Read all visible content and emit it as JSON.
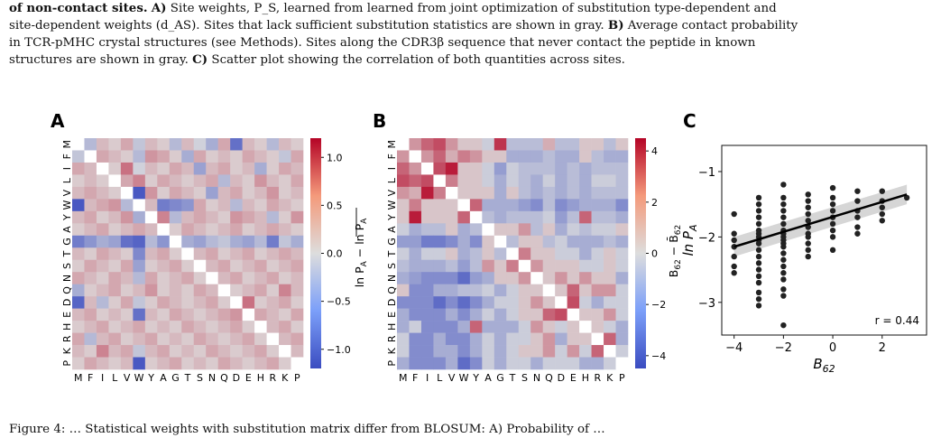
{
  "caption_top": {
    "line1_bold": "of non-contact sites.",
    "line1_A": "A)",
    "line1_rest": " Site weights, P_S, learned from learned from joint optimization of substitution type-dependent and",
    "line2": "site-dependent weights (d_AS). Sites that lack sufficient substitution statistics are shown in gray.",
    "line2_B": "B)",
    "line2_rest": " Average contact probability",
    "line3": "in TCR-pMHC crystal structures (see Methods). Sites along the CDR3β sequence that never contact the peptide in known",
    "line4": "structures are shown in gray.",
    "line4_C": "C)",
    "line4_rest": " Scatter plot showing the correlation of both quantities across sites."
  },
  "caption_bottom": "Figure 4: … Statistical weights with substitution matrix differ from BLOSUM: A) Probability of …",
  "panels": {
    "A": {
      "label": "A"
    },
    "B": {
      "label": "B"
    },
    "C": {
      "label": "C"
    }
  },
  "amino_acids": [
    "M",
    "F",
    "I",
    "L",
    "V",
    "W",
    "Y",
    "A",
    "G",
    "T",
    "S",
    "N",
    "Q",
    "D",
    "E",
    "H",
    "R",
    "K",
    "P"
  ],
  "colorbar_A": {
    "ticks": [
      "1.0",
      "0.5",
      "0.0",
      "−0.5",
      "−1.0"
    ],
    "label": "ln P_A − ln P_A (mean)"
  },
  "colorbar_B": {
    "ticks": [
      "4",
      "2",
      "0",
      "−2",
      "−4"
    ],
    "label": "B_62 − B̄_62"
  },
  "colors": {
    "cold": "#3b4cc0",
    "warm": "#b40426",
    "neutral": "#dddddd",
    "diag": "#ffffff"
  },
  "chart_data": [
    {
      "type": "heatmap",
      "panel": "A",
      "rows": [
        "M",
        "F",
        "I",
        "L",
        "V",
        "W",
        "Y",
        "A",
        "G",
        "T",
        "S",
        "N",
        "Q",
        "D",
        "E",
        "H",
        "R",
        "K",
        "P"
      ],
      "cols": [
        "M",
        "F",
        "I",
        "L",
        "V",
        "W",
        "Y",
        "A",
        "G",
        "T",
        "S",
        "N",
        "Q",
        "D",
        "E",
        "H",
        "R",
        "K",
        "P"
      ],
      "colorbar_range": [
        -1.2,
        1.2
      ],
      "ylabel": "ln P_A − ln P_A",
      "values": [
        [
          0,
          -0.3,
          0.2,
          0.1,
          0.3,
          -0.2,
          0.2,
          0.1,
          -0.3,
          0.2,
          -0.1,
          -0.4,
          0.3,
          -0.9,
          0.2,
          0.1,
          -0.3,
          0.2,
          0.1
        ],
        [
          -0.2,
          0,
          0.3,
          0.2,
          0.1,
          -0.3,
          0.4,
          0.3,
          0.1,
          -0.4,
          0.3,
          0.1,
          0.2,
          0.1,
          0.3,
          0.2,
          0.1,
          -0.2,
          0.3
        ],
        [
          0.3,
          0.2,
          0,
          0.1,
          0.6,
          -0.1,
          0.2,
          0.1,
          0.3,
          0.2,
          -0.5,
          0.2,
          0.3,
          0.1,
          0.2,
          -0.4,
          0.1,
          0.3,
          0.2
        ],
        [
          0.1,
          0.2,
          0.1,
          0,
          0.3,
          0.5,
          0.1,
          0.3,
          0.2,
          0.1,
          0.2,
          0.3,
          -0.3,
          0.2,
          0.1,
          0.4,
          0.2,
          0.1,
          0.3
        ],
        [
          0.2,
          0.3,
          0.2,
          0.1,
          0,
          -1.1,
          0.4,
          0.1,
          0.3,
          0.2,
          0.1,
          -0.5,
          0.2,
          0.3,
          0.1,
          0.2,
          0.4,
          0.1,
          0.2
        ],
        [
          -1.1,
          0.2,
          0.3,
          0.4,
          -0.3,
          0,
          0.2,
          -0.8,
          -0.7,
          -0.6,
          0.3,
          0.1,
          0.2,
          -0.3,
          0.2,
          0.1,
          0.3,
          0.2,
          0.1
        ],
        [
          0.2,
          0.3,
          0.1,
          0.2,
          0.4,
          -0.4,
          0,
          0.5,
          -0.3,
          0.2,
          0.3,
          0.2,
          0.1,
          0.4,
          0.3,
          0.2,
          -0.3,
          0.1,
          0.4
        ],
        [
          0.1,
          0.2,
          0.3,
          0.1,
          0.2,
          0.3,
          0.2,
          0,
          0.1,
          0.3,
          0.2,
          0.1,
          0.2,
          0.3,
          0.1,
          0.2,
          0.3,
          0.2,
          0.1
        ],
        [
          -0.8,
          -0.6,
          -0.4,
          -0.5,
          -0.9,
          -1.0,
          -0.3,
          -0.6,
          0,
          -0.4,
          -0.5,
          -0.3,
          -0.2,
          -0.4,
          -0.5,
          -0.3,
          -0.8,
          -0.2,
          -0.4
        ],
        [
          0.2,
          0.1,
          0.3,
          0.2,
          0.1,
          -0.7,
          0.2,
          0.3,
          0.1,
          0,
          0.2,
          0.3,
          0.1,
          0.2,
          0.3,
          0.1,
          0.2,
          0.3,
          0.2
        ],
        [
          0.1,
          0.3,
          0.2,
          0.1,
          0.3,
          -0.5,
          0.1,
          0.2,
          0.3,
          0.1,
          0,
          0.2,
          0.3,
          0.1,
          0.2,
          0.3,
          0.1,
          0.2,
          0.3
        ],
        [
          0.3,
          0.2,
          0.1,
          0.3,
          0.2,
          -0.3,
          0.3,
          0.1,
          0.2,
          0.3,
          0.1,
          0,
          0.2,
          0.3,
          0.1,
          0.2,
          0.3,
          0.1,
          0.2
        ],
        [
          -0.4,
          0.1,
          0.2,
          0.3,
          0.1,
          0.2,
          0.4,
          0.1,
          0.2,
          0.1,
          0.3,
          0.2,
          0,
          0.1,
          0.2,
          0.3,
          0.1,
          0.5,
          0.2
        ],
        [
          -1.0,
          0.2,
          -0.3,
          0.1,
          0.3,
          -0.2,
          0.1,
          0.3,
          0.2,
          0.1,
          0.2,
          0.3,
          0.1,
          0,
          0.6,
          0.1,
          0.2,
          0.3,
          0.1
        ],
        [
          0.2,
          0.3,
          0.1,
          0.2,
          0.1,
          -0.9,
          0.2,
          0.1,
          0.3,
          0.2,
          0.1,
          0.2,
          0.3,
          0.4,
          0,
          0.3,
          0.2,
          0.1,
          0.3
        ],
        [
          0.1,
          0.2,
          0.3,
          0.1,
          0.2,
          0.3,
          0.1,
          0.2,
          0.1,
          0.3,
          0.2,
          0.1,
          0.2,
          0.3,
          0.1,
          0,
          0.2,
          0.3,
          0.1
        ],
        [
          0.3,
          -0.3,
          0.2,
          0.3,
          0.1,
          0.2,
          0.3,
          0.1,
          0.2,
          0.1,
          0.3,
          0.2,
          0.1,
          0.2,
          0.3,
          0.1,
          0,
          0.2,
          0.3
        ],
        [
          0.2,
          0.1,
          0.5,
          0.2,
          0.3,
          -0.2,
          0.2,
          0.3,
          0.1,
          0.2,
          0.1,
          0.3,
          0.2,
          0.1,
          0.2,
          0.3,
          0.1,
          0,
          0.2
        ],
        [
          0.1,
          0.3,
          0.2,
          0.1,
          0.2,
          -1.1,
          0.1,
          0.2,
          0.3,
          0.1,
          0.2,
          0.1,
          0.3,
          0.2,
          0.1,
          0.2,
          0.3,
          0.1,
          0
        ]
      ]
    },
    {
      "type": "heatmap",
      "panel": "B",
      "rows": [
        "M",
        "F",
        "I",
        "L",
        "V",
        "W",
        "Y",
        "A",
        "G",
        "T",
        "S",
        "N",
        "Q",
        "D",
        "E",
        "H",
        "R",
        "K",
        "P"
      ],
      "cols": [
        "M",
        "F",
        "I",
        "L",
        "V",
        "W",
        "Y",
        "A",
        "G",
        "T",
        "S",
        "N",
        "Q",
        "D",
        "E",
        "H",
        "R",
        "K",
        "P"
      ],
      "colorbar_range": [
        -4.5,
        4.5
      ],
      "ylabel": "B_62 − B̄_62",
      "values": [
        [
          0,
          1.5,
          2.5,
          3,
          1.5,
          0.5,
          0.5,
          -0.5,
          3.5,
          -1,
          -1,
          -1,
          1,
          -1,
          -1,
          0.5,
          0.5,
          -1,
          0.5
        ],
        [
          1.5,
          0,
          1.5,
          2.5,
          1,
          2,
          1.5,
          0.5,
          0.5,
          -1.5,
          -1.5,
          -1.5,
          -1,
          -1.5,
          -1.5,
          0.5,
          -1,
          -1.5,
          -1.5
        ],
        [
          2.5,
          1.5,
          0,
          3,
          4,
          0.5,
          0.5,
          -0.5,
          -2,
          -0.5,
          -1,
          -1,
          -1,
          -1.5,
          -1,
          -1.5,
          -1,
          -1,
          -1
        ],
        [
          3,
          2.5,
          3,
          0,
          2,
          0.5,
          0.5,
          -0.5,
          -1.5,
          -0.5,
          -1,
          -1.5,
          -0.5,
          -1.5,
          -1,
          -1.5,
          -0.5,
          -0.5,
          -1
        ],
        [
          1.5,
          1,
          4,
          2,
          0,
          0.5,
          0.5,
          0.5,
          -1.5,
          0.5,
          -1,
          -1.5,
          -1,
          -1.5,
          -1,
          -1.5,
          -1,
          -1,
          -1
        ],
        [
          0.5,
          2,
          0.5,
          0.5,
          0.5,
          0,
          2.5,
          -1.5,
          -1.5,
          -1.5,
          -2,
          -2.5,
          -1,
          -2.5,
          -2,
          -1.5,
          -1.5,
          -1.5,
          -2.5
        ],
        [
          0.5,
          4,
          0.5,
          0.5,
          0.5,
          2.5,
          0,
          -1,
          -1.5,
          -1,
          -1,
          -1,
          -0.5,
          -2,
          -1,
          2.5,
          -1,
          -1,
          -1.5
        ],
        [
          -0.5,
          -1.5,
          -1,
          -1,
          0.5,
          -1.5,
          -1,
          0,
          0.5,
          0.5,
          1.5,
          -1,
          0.5,
          -1.5,
          -0.5,
          -1,
          -0.5,
          -0.5,
          0.5
        ],
        [
          -2,
          -2,
          -3,
          -3,
          -2.5,
          -1.5,
          -2.5,
          0.5,
          0,
          -1,
          0.5,
          0.5,
          -1,
          -0.5,
          -1.5,
          -1.5,
          -1.5,
          -1,
          -1.5
        ],
        [
          -0.5,
          -1.5,
          -0.5,
          -0.5,
          0.5,
          -1.5,
          -1,
          0.5,
          -1,
          0,
          2,
          0.5,
          0.5,
          -0.5,
          -0.5,
          -1.5,
          -0.5,
          0.5,
          -0.5
        ],
        [
          -1,
          -1.5,
          -1.5,
          -1.5,
          -1,
          -2,
          -1,
          1.5,
          0.5,
          2,
          0,
          1.5,
          0.5,
          0.5,
          0.5,
          -0.5,
          -0.5,
          0.5,
          -0.5
        ],
        [
          -1.5,
          -2,
          -2.5,
          -2.5,
          -2.5,
          -3.5,
          -2,
          -1.5,
          0.5,
          0.5,
          1.5,
          0,
          0.5,
          1.5,
          0.5,
          1.5,
          0.5,
          0.5,
          -1.5
        ],
        [
          0.5,
          -2.5,
          -2.5,
          -1.5,
          -1.5,
          -1,
          -1,
          -0.5,
          -1.5,
          -0.5,
          0.5,
          0.5,
          0,
          0.5,
          2.5,
          0.5,
          1.5,
          1.5,
          -0.5
        ],
        [
          -2.5,
          -2.5,
          -2.5,
          -3.5,
          -2.5,
          -3.5,
          -2.5,
          -1.5,
          -0.5,
          -0.5,
          0.5,
          1.5,
          0.5,
          0,
          3,
          -0.5,
          -1.5,
          -0.5,
          -0.5
        ],
        [
          -1.5,
          -2.5,
          -2.5,
          -2.5,
          -1.5,
          -2.5,
          -1.5,
          -0.5,
          -1.5,
          -0.5,
          0.5,
          0.5,
          2.5,
          3,
          0,
          0.5,
          0.5,
          1.5,
          -0.5
        ],
        [
          -1.5,
          -0.5,
          -2.5,
          -2.5,
          -2.5,
          -1.5,
          2.5,
          -1.5,
          -1.5,
          -1.5,
          -0.5,
          1.5,
          0.5,
          -0.5,
          0.5,
          0,
          0.5,
          -0.5,
          -1.5
        ],
        [
          -0.5,
          -2.5,
          -2.5,
          -1.5,
          -2.5,
          -2.5,
          -1.5,
          -0.5,
          -1.5,
          -0.5,
          -0.5,
          0.5,
          1.5,
          -1.5,
          0.5,
          0.5,
          0,
          2.5,
          -1.5
        ],
        [
          -0.5,
          -2.5,
          -2.5,
          -1.5,
          -1.5,
          -2.5,
          -1.5,
          -0.5,
          -1.5,
          -0.5,
          0.5,
          0.5,
          1.5,
          -0.5,
          1.5,
          -0.5,
          2.5,
          0,
          -0.5
        ],
        [
          -1.5,
          -2.5,
          -2.5,
          -2.5,
          -1.5,
          -3.5,
          -2.5,
          -0.5,
          -1.5,
          -0.5,
          -0.5,
          -1.5,
          -0.5,
          -0.5,
          -0.5,
          -1.5,
          -1.5,
          -0.5,
          0
        ]
      ]
    },
    {
      "type": "scatter",
      "panel": "C",
      "xlabel": "B_62",
      "ylabel": "ln P_A",
      "xlim": [
        -4.5,
        3.8
      ],
      "ylim": [
        -3.5,
        -0.6
      ],
      "xticks": [
        -4,
        -2,
        0,
        2
      ],
      "yticks": [
        -1,
        -2,
        -3
      ],
      "annotation": "r = 0.44",
      "fit": {
        "x": [
          -4,
          3
        ],
        "y": [
          -2.15,
          -1.35
        ]
      },
      "points": [
        [
          -4,
          -1.65
        ],
        [
          -4,
          -1.95
        ],
        [
          -4,
          -2.05
        ],
        [
          -4,
          -2.15
        ],
        [
          -4,
          -2.3
        ],
        [
          -4,
          -2.45
        ],
        [
          -4,
          -2.55
        ],
        [
          -3,
          -1.4
        ],
        [
          -3,
          -1.5
        ],
        [
          -3,
          -1.6
        ],
        [
          -3,
          -1.7
        ],
        [
          -3,
          -1.8
        ],
        [
          -3,
          -1.9
        ],
        [
          -3,
          -1.95
        ],
        [
          -3,
          -2.0
        ],
        [
          -3,
          -2.05
        ],
        [
          -3,
          -2.1
        ],
        [
          -3,
          -2.2
        ],
        [
          -3,
          -2.3
        ],
        [
          -3,
          -2.4
        ],
        [
          -3,
          -2.5
        ],
        [
          -3,
          -2.6
        ],
        [
          -3,
          -2.7
        ],
        [
          -3,
          -2.85
        ],
        [
          -3,
          -2.95
        ],
        [
          -3,
          -3.05
        ],
        [
          -2,
          -1.2
        ],
        [
          -2,
          -1.4
        ],
        [
          -2,
          -1.5
        ],
        [
          -2,
          -1.6
        ],
        [
          -2,
          -1.7
        ],
        [
          -2,
          -1.8
        ],
        [
          -2,
          -1.9
        ],
        [
          -2,
          -1.95
        ],
        [
          -2,
          -2.0
        ],
        [
          -2,
          -2.05
        ],
        [
          -2,
          -2.1
        ],
        [
          -2,
          -2.15
        ],
        [
          -2,
          -2.25
        ],
        [
          -2,
          -2.35
        ],
        [
          -2,
          -2.45
        ],
        [
          -2,
          -2.55
        ],
        [
          -2,
          -2.65
        ],
        [
          -2,
          -2.8
        ],
        [
          -2,
          -2.9
        ],
        [
          -2,
          -3.35
        ],
        [
          -1,
          -1.35
        ],
        [
          -1,
          -1.45
        ],
        [
          -1,
          -1.55
        ],
        [
          -1,
          -1.65
        ],
        [
          -1,
          -1.75
        ],
        [
          -1,
          -1.85
        ],
        [
          -1,
          -1.95
        ],
        [
          -1,
          -2.0
        ],
        [
          -1,
          -2.1
        ],
        [
          -1,
          -2.2
        ],
        [
          -1,
          -2.3
        ],
        [
          0,
          -1.25
        ],
        [
          0,
          -1.4
        ],
        [
          0,
          -1.5
        ],
        [
          0,
          -1.6
        ],
        [
          0,
          -1.7
        ],
        [
          0,
          -1.8
        ],
        [
          0,
          -1.9
        ],
        [
          0,
          -2.0
        ],
        [
          0,
          -2.2
        ],
        [
          1,
          -1.3
        ],
        [
          1,
          -1.45
        ],
        [
          1,
          -1.6
        ],
        [
          1,
          -1.7
        ],
        [
          1,
          -1.85
        ],
        [
          1,
          -1.95
        ],
        [
          2,
          -1.3
        ],
        [
          2,
          -1.45
        ],
        [
          2,
          -1.55
        ],
        [
          2,
          -1.65
        ],
        [
          2,
          -1.75
        ],
        [
          3,
          -1.4
        ]
      ]
    }
  ]
}
